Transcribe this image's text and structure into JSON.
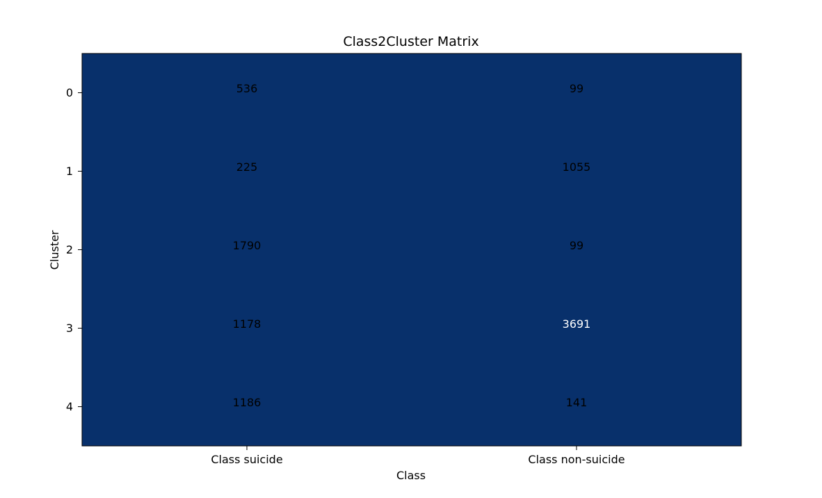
{
  "chart_data": {
    "type": "heatmap",
    "title": "Class2Cluster Matrix",
    "xlabel": "Class",
    "ylabel": "Cluster",
    "x_categories": [
      "Class suicide",
      "Class non-suicide"
    ],
    "y_categories": [
      "0",
      "1",
      "2",
      "3",
      "4"
    ],
    "values": [
      [
        536,
        99
      ],
      [
        225,
        1055
      ],
      [
        1790,
        99
      ],
      [
        1178,
        3691
      ],
      [
        1186,
        141
      ]
    ],
    "cell_color": "#08306b",
    "text_color_default": "#000000",
    "text_color_highlight": "#ffffff",
    "highlight_cell": [
      3,
      1
    ]
  }
}
